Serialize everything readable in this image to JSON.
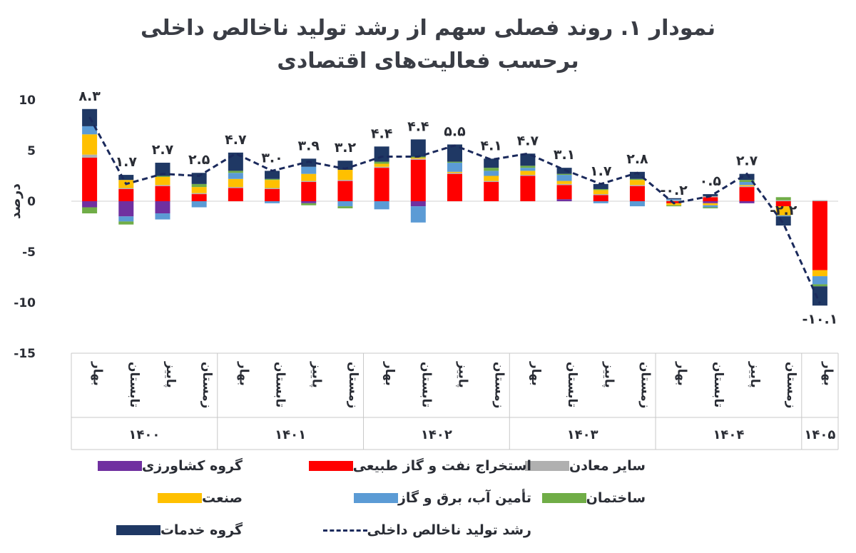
{
  "chart_data": {
    "type": "bar",
    "title": "نمودار ۱.  روند فصلی سهم از رشد تولید ناخالص داخلی",
    "subtitle": "برحسب فعالیت‌های اقتصادی",
    "ylabel": "درصد",
    "ylim": [
      -15,
      10
    ],
    "yticks": [
      "10",
      "5",
      "0",
      "-5",
      "-10",
      "-15"
    ],
    "yticks_values": [
      10,
      5,
      0,
      -5,
      -10,
      -15
    ],
    "categories": [
      "بهار",
      "تابستان",
      "پاییز",
      "زمستان",
      "بهار",
      "تابستان",
      "پاییز",
      "زمستان",
      "بهار",
      "تابستان",
      "پاییز",
      "زمستان",
      "بهار",
      "تابستان",
      "پاییز",
      "زمستان",
      "بهار",
      "تابستان",
      "پاییز",
      "زمستان",
      "بهار"
    ],
    "groups": [
      {
        "label": "۱۴۰۰",
        "count": 4
      },
      {
        "label": "۱۴۰۱",
        "count": 4
      },
      {
        "label": "۱۴۰۲",
        "count": 4
      },
      {
        "label": "۱۴۰۳",
        "count": 4
      },
      {
        "label": "۱۴۰۴",
        "count": 4
      },
      {
        "label": "۱۴۰۵",
        "count": 1
      }
    ],
    "series": [
      {
        "name": "گروه کشاورزی",
        "color": "#7030a0",
        "values": [
          -0.6,
          -1.5,
          -1.2,
          0,
          0,
          0,
          -0.2,
          0,
          0,
          -0.5,
          0,
          0,
          0,
          0.2,
          0,
          0,
          0,
          -0.2,
          -0.2,
          0,
          0
        ]
      },
      {
        "name": "استخراج نفت و گاز طبیعی",
        "color": "#ff0000",
        "values": [
          4.3,
          1.2,
          1.5,
          0.7,
          1.3,
          1.2,
          1.9,
          2.0,
          3.3,
          4.1,
          2.7,
          1.9,
          2.5,
          1.4,
          0.6,
          1.5,
          -0.2,
          0.4,
          1.4,
          -0.5,
          -6.8
        ]
      },
      {
        "name": "سایر معادن",
        "color": "#b0b0b0",
        "values": [
          0.3,
          0.1,
          0.1,
          0.1,
          0.1,
          0.1,
          0.1,
          0.1,
          0.1,
          0.1,
          0.1,
          0.1,
          0.1,
          0.1,
          0.1,
          0.1,
          0.1,
          0.1,
          0.1,
          0.1,
          0.1
        ]
      },
      {
        "name": "صنعت",
        "color": "#ffc000",
        "values": [
          2.0,
          0.8,
          0.8,
          0.6,
          0.8,
          0.8,
          0.7,
          1.0,
          0.3,
          0.1,
          0.1,
          0.5,
          0.4,
          0.3,
          0.4,
          0.5,
          -0.2,
          -0.2,
          0.1,
          -0.9,
          -0.6
        ]
      },
      {
        "name": "تأمین آب، برق و گاز",
        "color": "#5b9bd5",
        "values": [
          0.8,
          -0.5,
          -0.6,
          -0.6,
          0.6,
          -0.2,
          0.7,
          -0.5,
          -0.8,
          -1.6,
          0.9,
          0.5,
          0.3,
          0.6,
          -0.2,
          -0.5,
          0.1,
          -0.2,
          0.3,
          -0.1,
          -0.8
        ]
      },
      {
        "name": "ساختمان",
        "color": "#70ad47",
        "values": [
          -0.6,
          -0.3,
          0.1,
          0.3,
          0.2,
          0.1,
          -0.2,
          -0.2,
          0.2,
          0.1,
          0.1,
          0.3,
          0.2,
          0.1,
          0.1,
          0.1,
          -0.1,
          -0.1,
          0.2,
          0.3,
          -0.2
        ]
      },
      {
        "name": "گروه خدمات",
        "color": "#1f3864",
        "values": [
          1.7,
          0.5,
          1.3,
          1.1,
          1.8,
          0.8,
          0.8,
          0.9,
          1.5,
          1.7,
          1.7,
          0.9,
          1.2,
          0.6,
          0.5,
          0.7,
          0.1,
          0.2,
          0.6,
          -0.9,
          -1.9
        ]
      }
    ],
    "line": {
      "name": "رشد تولید ناخالص داخلی",
      "color": "#1b2a5c",
      "values": [
        8.3,
        1.7,
        2.7,
        2.5,
        4.7,
        3.0,
        3.9,
        3.2,
        4.4,
        4.4,
        5.5,
        4.1,
        4.7,
        3.1,
        1.7,
        2.8,
        -0.2,
        0.5,
        2.7,
        -2.2,
        -10.1
      ],
      "labels": [
        "۸.۳",
        "۱.۷",
        "۲.۷",
        "۲.۵",
        "۴.۷",
        "۳.۰",
        "۳.۹",
        "۳.۲",
        "۴.۴",
        "۴.۴",
        "۵.۵",
        "۴.۱",
        "۴.۷",
        "۳.۱",
        "۱.۷",
        "۲.۸",
        "-۰.۲",
        "۰.۵",
        "۲.۷",
        "-۲.۲",
        "-۱۰.۱"
      ]
    },
    "legend_position": "bottom",
    "grid": false
  }
}
